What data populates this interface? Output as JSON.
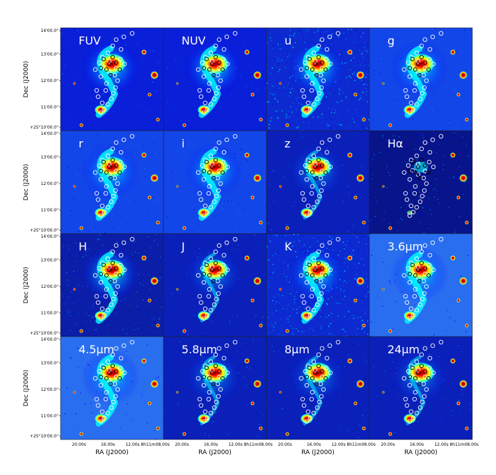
{
  "chart_data": {
    "type": "image-grid",
    "rows": 4,
    "cols": 4,
    "panels": [
      {
        "label": "FUV",
        "style": "uv"
      },
      {
        "label": "NUV",
        "style": "uv"
      },
      {
        "label": "u",
        "style": "noisy"
      },
      {
        "label": "g",
        "style": "optical"
      },
      {
        "label": "r",
        "style": "optical"
      },
      {
        "label": "i",
        "style": "optical"
      },
      {
        "label": "z",
        "style": "faint"
      },
      {
        "label": "Hα",
        "style": "halpha"
      },
      {
        "label": "H",
        "style": "nir"
      },
      {
        "label": "J",
        "style": "faint"
      },
      {
        "label": "K",
        "style": "noisy"
      },
      {
        "label": "3.6μm",
        "style": "irac"
      },
      {
        "label": "4.5μm",
        "style": "irac"
      },
      {
        "label": "5.8μm",
        "style": "faint"
      },
      {
        "label": "8μm",
        "style": "faint"
      },
      {
        "label": "24μm",
        "style": "faint"
      }
    ],
    "y_axis": {
      "label": "Dec (J2000)",
      "ticks": [
        "14'00.0\"",
        "13'00.0\"",
        "12'00.0\"",
        "11'00.0\"",
        "+25°10'00.0\""
      ]
    },
    "x_axis": {
      "label": "RA (J2000)",
      "ticks": [
        "20.00s",
        "16.00s",
        "12.00s",
        "8h11m08.00s"
      ]
    },
    "colormap": [
      "#00007f",
      "#0000ff",
      "#007fff",
      "#00ffff",
      "#7fff7f",
      "#ffff00",
      "#ff7f00",
      "#ff0000",
      "#7f0000"
    ],
    "marker_colors": {
      "open_white": "#ffffff",
      "open_black": "#000000"
    }
  }
}
